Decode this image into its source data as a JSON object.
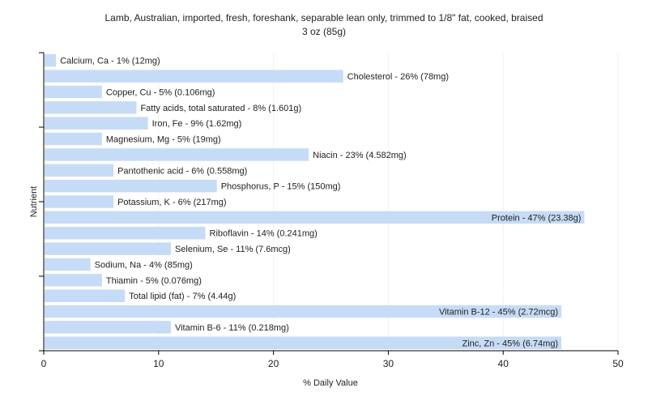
{
  "chart_data": {
    "type": "bar",
    "orientation": "horizontal",
    "title_line1": "Lamb, Australian, imported, fresh, foreshank, separable lean only, trimmed to 1/8\" fat, cooked, braised",
    "title_line2": "3 oz (85g)",
    "xlabel": "% Daily Value",
    "ylabel": "Nutrient",
    "xlim": [
      0,
      50
    ],
    "xticks": [
      0,
      10,
      20,
      30,
      40,
      50
    ],
    "grid": true,
    "bar_color": "#c6dcf6",
    "categories": [
      "Calcium, Ca - 1% (12mg)",
      "Cholesterol - 26% (78mg)",
      "Copper, Cu - 5% (0.106mg)",
      "Fatty acids, total saturated - 8% (1.601g)",
      "Iron, Fe - 9% (1.62mg)",
      "Magnesium, Mg - 5% (19mg)",
      "Niacin - 23% (4.582mg)",
      "Pantothenic acid - 6% (0.558mg)",
      "Phosphorus, P - 15% (150mg)",
      "Potassium, K - 6% (217mg)",
      "Protein - 47% (23.38g)",
      "Riboflavin - 14% (0.241mg)",
      "Selenium, Se - 11% (7.6mcg)",
      "Sodium, Na - 4% (85mg)",
      "Thiamin - 5% (0.076mg)",
      "Total lipid (fat) - 7% (4.44g)",
      "Vitamin B-12 - 45% (2.72mcg)",
      "Vitamin B-6 - 11% (0.218mg)",
      "Zinc, Zn - 45% (6.74mg)"
    ],
    "values": [
      1,
      26,
      5,
      8,
      9,
      5,
      23,
      6,
      15,
      6,
      47,
      14,
      11,
      4,
      5,
      7,
      45,
      11,
      45
    ]
  }
}
